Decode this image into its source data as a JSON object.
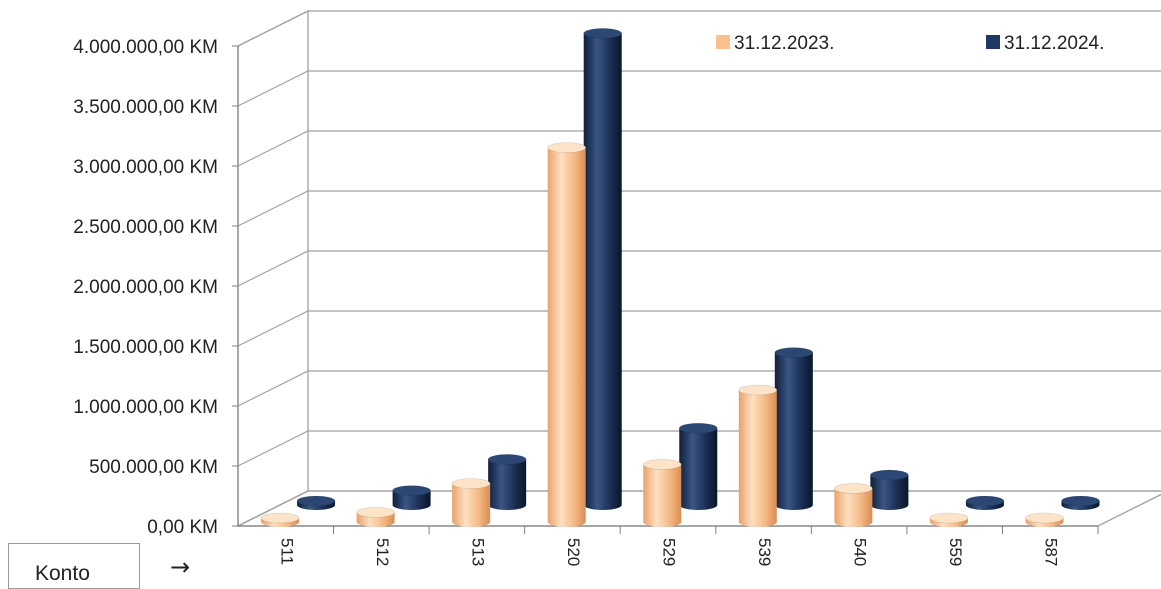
{
  "chart_data": {
    "type": "bar",
    "style": "3d-cylinder",
    "categories": [
      "511",
      "512",
      "513",
      "520",
      "529",
      "539",
      "540",
      "559",
      "587"
    ],
    "series": [
      {
        "name": "31.12.2023.",
        "color": "#fac090",
        "values": [
          20000,
          80000,
          320000,
          3120000,
          480000,
          1100000,
          280000,
          20000,
          20000
        ]
      },
      {
        "name": "31.12.2024.",
        "color": "#1f3864",
        "values": [
          20000,
          120000,
          380000,
          3930000,
          640000,
          1270000,
          250000,
          20000,
          20000
        ]
      }
    ],
    "yticks": [
      "0,00 KM",
      "500.000,00 KM",
      "1.000.000,00 KM",
      "1.500.000,00 KM",
      "2.000.000,00 KM",
      "2.500.000,00 KM",
      "3.000.000,00 KM",
      "3.500.000,00 KM",
      "4.000.000,00 KM"
    ],
    "ylim": [
      0,
      4000000
    ],
    "grid": true,
    "legend": "top-right"
  },
  "axis": {
    "x_label": "Konto",
    "arrow": "→"
  }
}
